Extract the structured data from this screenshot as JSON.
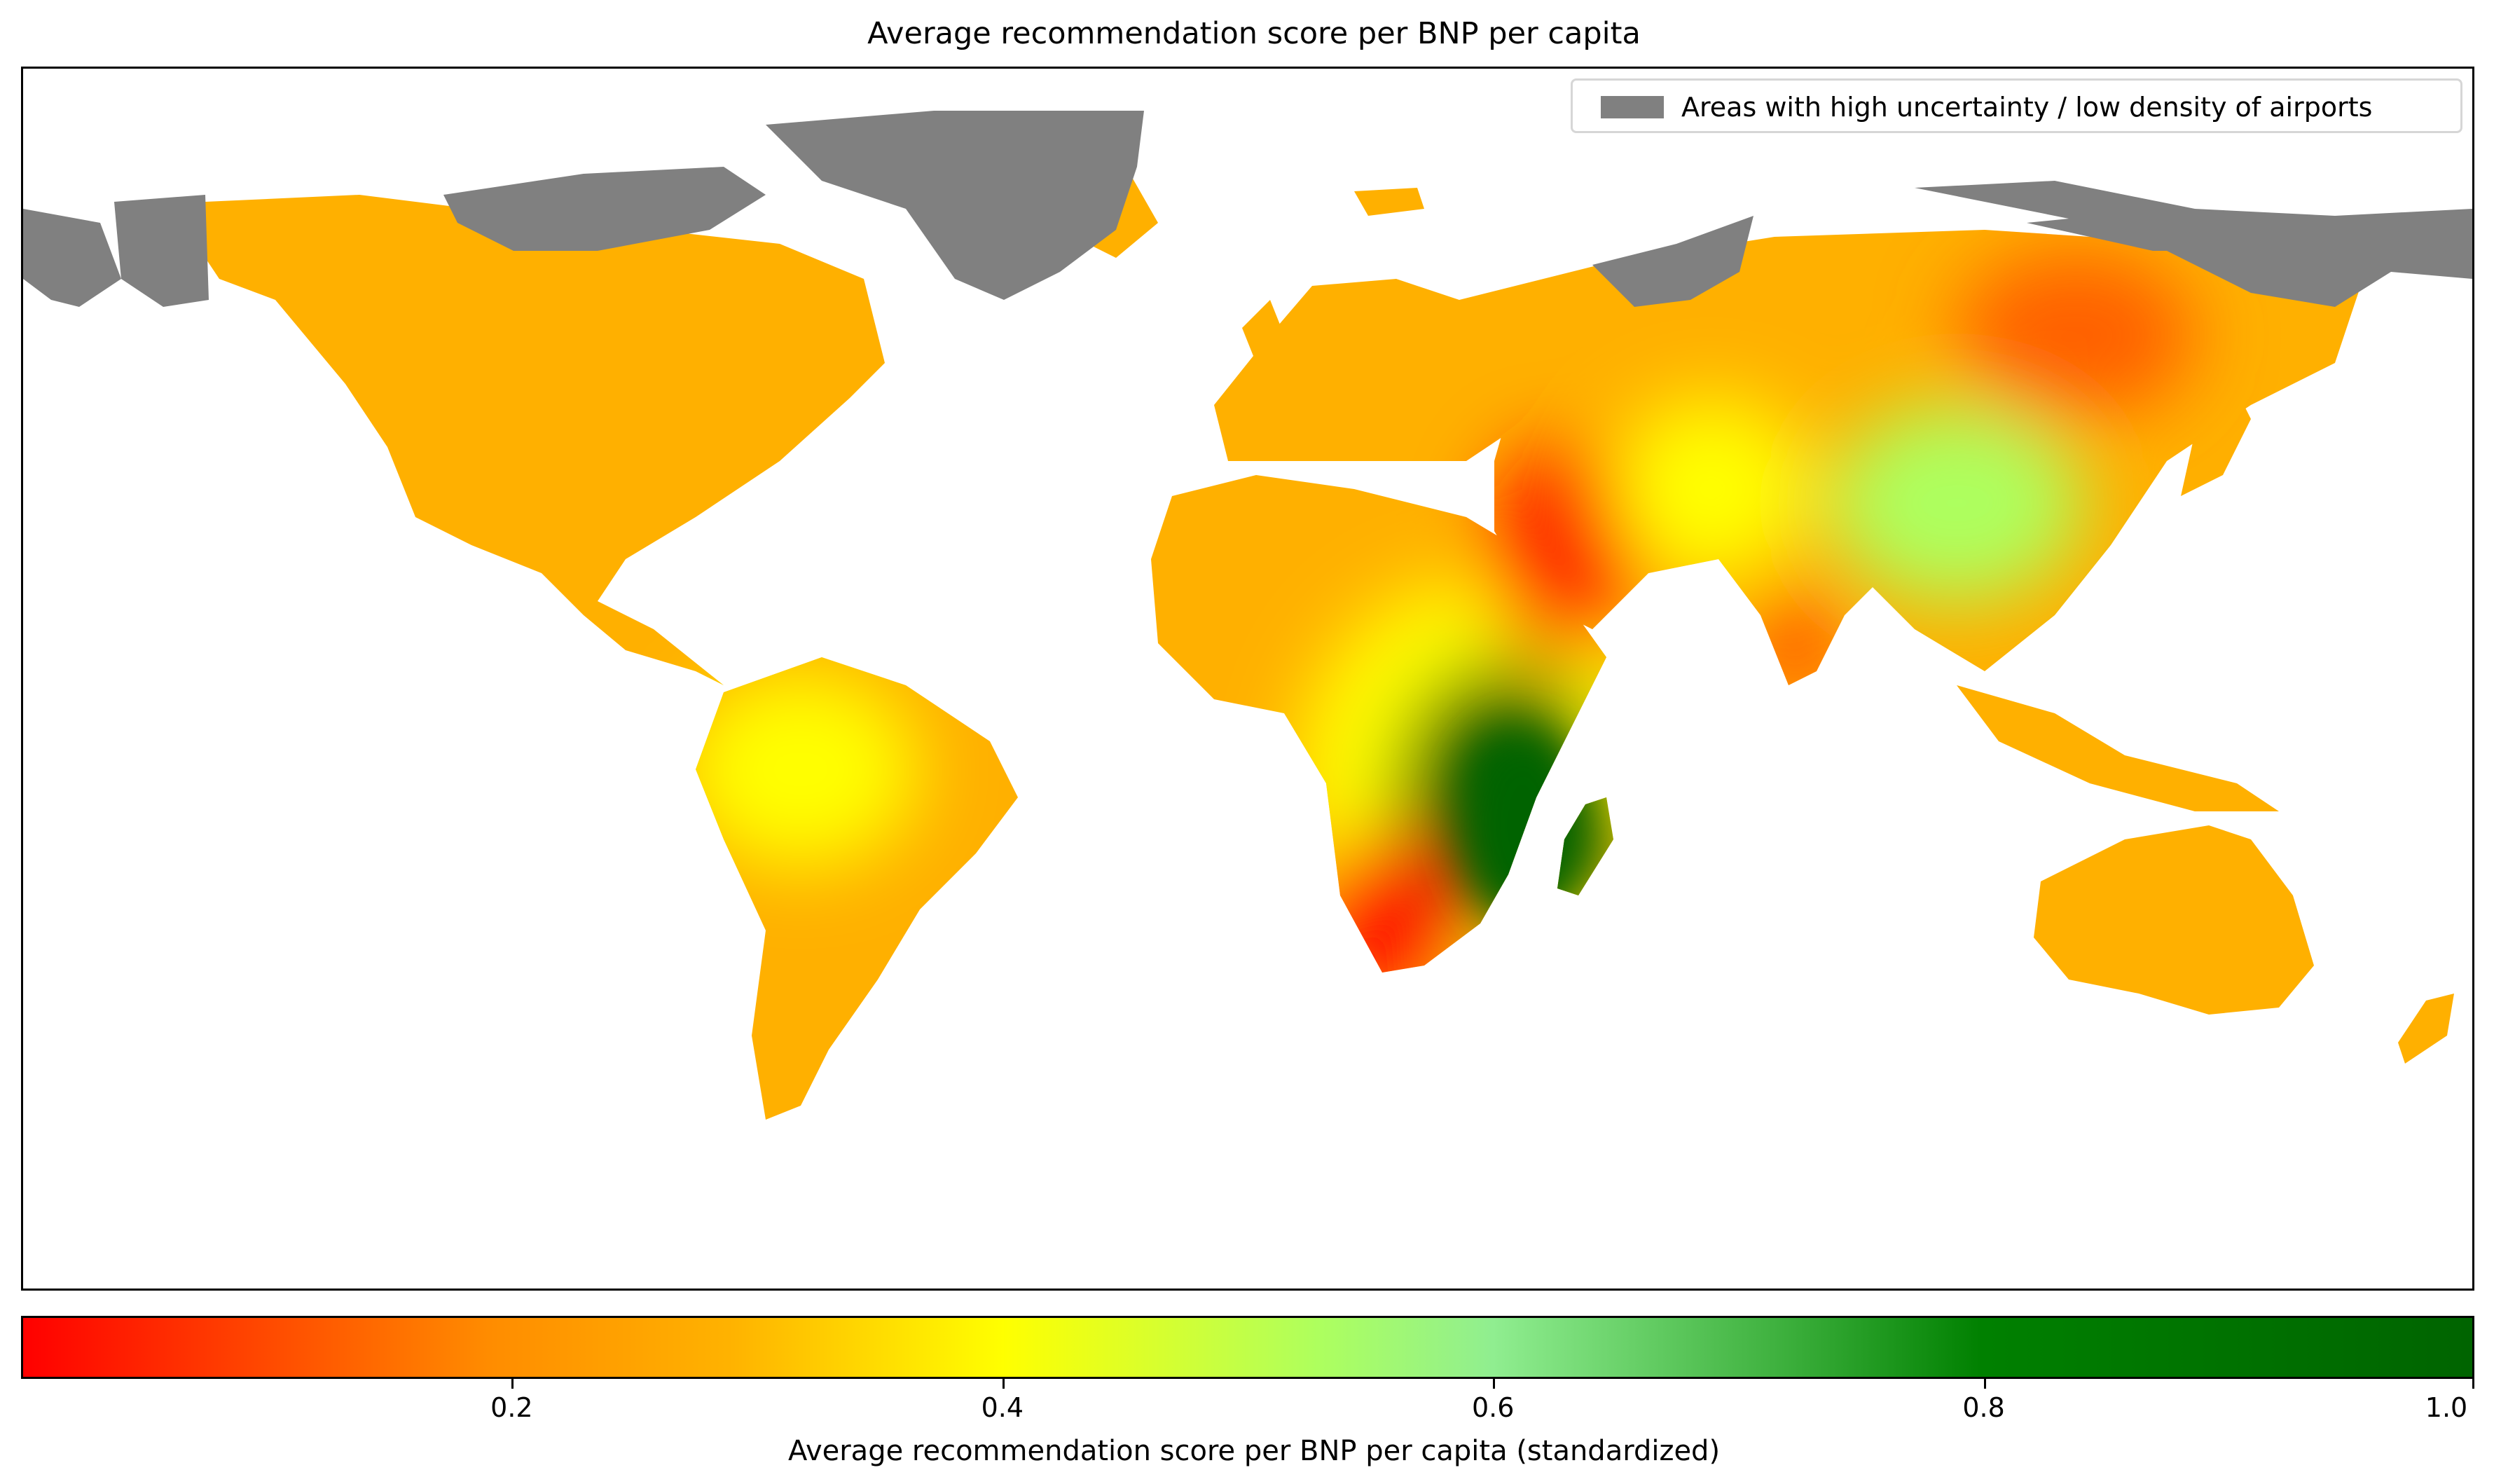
{
  "map": {
    "title": "Average recommendation score per BNP per capita",
    "legend": {
      "label": "Areas with high uncertainty / low density of airports",
      "color": "#808080"
    },
    "colorbar": {
      "label": "Average recommendation score per BNP per capita (standardized)",
      "ticks": [
        "0.2",
        "0.4",
        "0.6",
        "0.8",
        "1.0"
      ],
      "tick_values": [
        0.2,
        0.4,
        0.6,
        0.8,
        1.0
      ],
      "range": [
        0.0,
        1.0
      ],
      "colors": [
        "#ff0000",
        "#ff8c00",
        "#ffb300",
        "#ffff00",
        "#adff5f",
        "#90ee90",
        "#3caf3c",
        "#008000",
        "#006400"
      ]
    },
    "land_color": "#ffb000",
    "uncertain_color": "#808080",
    "hotspots": [
      {
        "region": "Southeast Africa",
        "value": 0.95,
        "color": "#006400"
      },
      {
        "region": "Madagascar",
        "value": 0.9,
        "color": "#006400"
      },
      {
        "region": "Southern Africa (Namibia)",
        "value": 0.02,
        "color": "#ff0000"
      },
      {
        "region": "Arabian Peninsula",
        "value": 0.05,
        "color": "#ff2000"
      },
      {
        "region": "Central China",
        "value": 0.5,
        "color": "#adff5f"
      },
      {
        "region": "Central Asia",
        "value": 0.38,
        "color": "#ffff00"
      },
      {
        "region": "Amazon basin",
        "value": 0.38,
        "color": "#ffff00"
      },
      {
        "region": "Eastern Siberia",
        "value": 0.12,
        "color": "#ff6000"
      },
      {
        "region": "Southern India",
        "value": 0.1,
        "color": "#ff5000"
      }
    ]
  }
}
